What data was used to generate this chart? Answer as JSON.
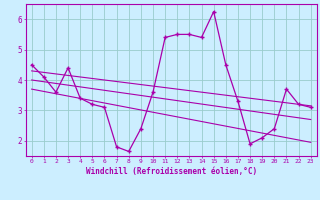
{
  "xlabel": "Windchill (Refroidissement éolien,°C)",
  "background_color": "#cceeff",
  "line_color": "#aa00aa",
  "grid_color": "#99cccc",
  "xlim": [
    -0.5,
    23.5
  ],
  "ylim": [
    1.5,
    6.5
  ],
  "yticks": [
    2,
    3,
    4,
    5,
    6
  ],
  "xticks": [
    0,
    1,
    2,
    3,
    4,
    5,
    6,
    7,
    8,
    9,
    10,
    11,
    12,
    13,
    14,
    15,
    16,
    17,
    18,
    19,
    20,
    21,
    22,
    23
  ],
  "main_data_x": [
    0,
    1,
    2,
    3,
    4,
    5,
    6,
    7,
    8,
    9,
    10,
    11,
    12,
    13,
    14,
    15,
    16,
    17,
    18,
    19,
    20,
    21,
    22,
    23
  ],
  "main_data_y": [
    4.5,
    4.1,
    3.6,
    4.4,
    3.4,
    3.2,
    3.1,
    1.8,
    1.65,
    2.4,
    3.6,
    5.4,
    5.5,
    5.5,
    5.4,
    6.25,
    4.5,
    3.3,
    1.9,
    2.1,
    2.4,
    3.7,
    3.2,
    3.1
  ],
  "trend1_x": [
    0,
    23
  ],
  "trend1_y": [
    4.3,
    3.15
  ],
  "trend2_x": [
    0,
    23
  ],
  "trend2_y": [
    4.0,
    2.7
  ],
  "trend3_x": [
    0,
    23
  ],
  "trend3_y": [
    3.7,
    1.95
  ]
}
